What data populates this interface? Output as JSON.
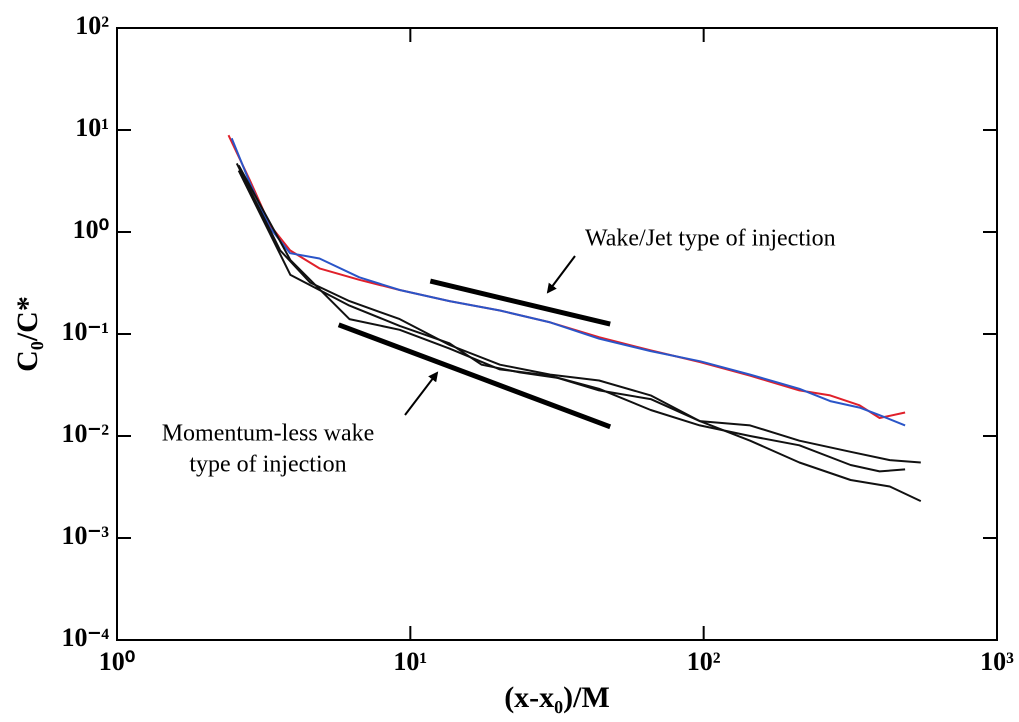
{
  "chart_data": {
    "type": "line",
    "x_label": "(x-x₀)/M",
    "y_label": "C₀/C*",
    "xscale": "log",
    "yscale": "log",
    "xlim": [
      1,
      1000
    ],
    "ylim": [
      0.0001,
      100
    ],
    "xticks": [
      {
        "value": 1,
        "label": "10⁰"
      },
      {
        "value": 10,
        "label": "10¹"
      },
      {
        "value": 100,
        "label": "10²"
      },
      {
        "value": 1000,
        "label": "10³"
      }
    ],
    "yticks": [
      {
        "value": 0.0001,
        "label": "10⁻⁴"
      },
      {
        "value": 0.001,
        "label": "10⁻³"
      },
      {
        "value": 0.01,
        "label": "10⁻²"
      },
      {
        "value": 0.1,
        "label": "10⁻¹"
      },
      {
        "value": 1,
        "label": "10⁰"
      },
      {
        "value": 10,
        "label": "10¹"
      },
      {
        "value": 100,
        "label": "10²"
      }
    ],
    "annotations": [
      {
        "lines": [
          "Wake/Jet type of injection"
        ]
      },
      {
        "lines": [
          "Momentum-less wake",
          "type of injection"
        ]
      }
    ],
    "series": [
      {
        "color": "#e0202a",
        "width": 2,
        "x": [
          2.4,
          2.84,
          3.32,
          3.89,
          4.9,
          6.7,
          9.2,
          13.6,
          20.2,
          30,
          44,
          66,
          97.4,
          144,
          212,
          270,
          340,
          398,
          486
        ],
        "values": [
          8.9,
          3.2,
          1.17,
          0.66,
          0.44,
          0.34,
          0.27,
          0.21,
          0.17,
          0.13,
          0.093,
          0.069,
          0.053,
          0.039,
          0.028,
          0.025,
          0.02,
          0.015,
          0.017
        ]
      },
      {
        "color": "#2a55c8",
        "width": 2,
        "x": [
          2.46,
          2.84,
          3.32,
          3.89,
          4.9,
          6.7,
          9.2,
          13.6,
          20.2,
          30,
          44,
          66,
          97.4,
          144,
          212,
          270,
          340,
          398,
          486
        ],
        "values": [
          8.3,
          3.0,
          1.1,
          0.62,
          0.55,
          0.36,
          0.27,
          0.21,
          0.17,
          0.13,
          0.09,
          0.068,
          0.054,
          0.04,
          0.029,
          0.022,
          0.019,
          0.016,
          0.0127
        ]
      },
      {
        "color": "#111111",
        "width": 2,
        "x": [
          2.56,
          3.6,
          4.55,
          6.2,
          9.2,
          13.6,
          20.2,
          30,
          44,
          66,
          97,
          144,
          212,
          317,
          431,
          550
        ],
        "values": [
          4.7,
          0.66,
          0.32,
          0.21,
          0.14,
          0.078,
          0.05,
          0.04,
          0.035,
          0.025,
          0.014,
          0.0127,
          0.009,
          0.007,
          0.0058,
          0.0055
        ]
      },
      {
        "color": "#111111",
        "width": 2,
        "x": [
          2.6,
          3.9,
          6.2,
          9.2,
          13.6,
          20.2,
          30,
          44,
          66,
          97,
          144,
          212,
          317,
          431,
          550
        ],
        "values": [
          4.5,
          0.53,
          0.14,
          0.11,
          0.072,
          0.045,
          0.039,
          0.028,
          0.023,
          0.014,
          0.009,
          0.0055,
          0.0037,
          0.0032,
          0.0023
        ]
      },
      {
        "color": "#111111",
        "width": 2,
        "x": [
          2.6,
          3.9,
          6.2,
          9.2,
          13.6,
          17.5,
          23.6,
          32,
          44,
          66,
          97,
          144,
          212,
          317,
          398,
          486
        ],
        "values": [
          4.0,
          0.38,
          0.19,
          0.12,
          0.081,
          0.05,
          0.042,
          0.037,
          0.029,
          0.018,
          0.0127,
          0.01,
          0.0081,
          0.0052,
          0.0045,
          0.0047
        ]
      },
      {
        "color": "#000000",
        "width": 5,
        "x": [
          11.7,
          48
        ],
        "values": [
          0.33,
          0.125
        ]
      },
      {
        "color": "#000000",
        "width": 5,
        "x": [
          5.7,
          48
        ],
        "values": [
          0.123,
          0.0123
        ]
      }
    ]
  }
}
